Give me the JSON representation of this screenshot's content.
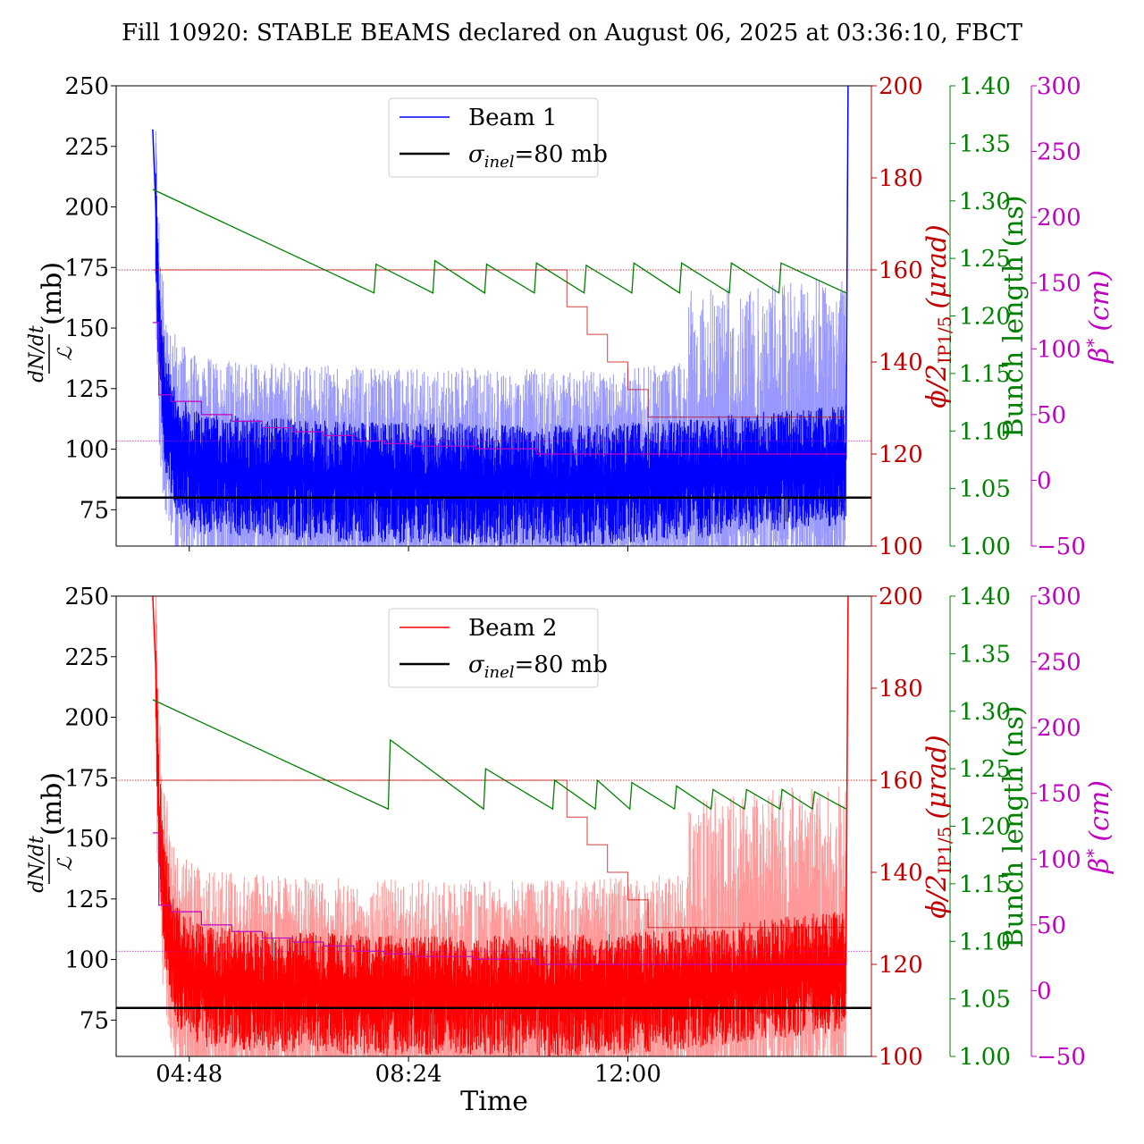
{
  "title": "Fill 10920: STABLE BEAMS declared on August 06, 2025 at 03:36:10, FBCT",
  "colors": {
    "beam1": "#0000ff",
    "beam1_light": "#9999ff",
    "beam2": "#ff0000",
    "beam2_light": "#ff9999",
    "sigma": "#000000",
    "crossing": "#c00000",
    "crossing_right_axis": "#c00000",
    "bunch": "#008000",
    "beta": "#c000c0"
  },
  "xaxis": {
    "label": "Time",
    "range": [
      "03:36",
      "16:00"
    ],
    "ticks": [
      "04:48",
      "08:24",
      "12:00"
    ]
  },
  "left_axis": {
    "label_fraction_numerator": "dN/dt",
    "label_fraction_denominator": "ℒ",
    "label_unit": "(mb)",
    "range": [
      60,
      250
    ],
    "ticks": [
      "75",
      "100",
      "125",
      "150",
      "175",
      "200",
      "225",
      "250"
    ]
  },
  "crossing_axis": {
    "label": "ϕ/2",
    "label_sub": "IP1/5",
    "label_unit": "(μrad)",
    "range": [
      100,
      200
    ],
    "ticks": [
      "100",
      "120",
      "140",
      "160",
      "180",
      "200"
    ]
  },
  "bunch_axis": {
    "label": "Bunch length (ns)",
    "range": [
      1.0,
      1.4
    ],
    "ticks": [
      "1.00",
      "1.05",
      "1.10",
      "1.15",
      "1.20",
      "1.25",
      "1.30",
      "1.35",
      "1.40"
    ]
  },
  "beta_axis": {
    "label": "β",
    "label_sup": "*",
    "label_unit": "(cm)",
    "range": [
      -50,
      300
    ],
    "ticks": [
      "−50",
      "0",
      "50",
      "100",
      "150",
      "200",
      "250",
      "300"
    ]
  },
  "panels": [
    {
      "legend": {
        "beam_label": "Beam 1",
        "sigma_symbol": "σ",
        "sigma_sub": "inel",
        "sigma_value": "=80 mb"
      }
    },
    {
      "legend": {
        "beam_label": "Beam 2",
        "sigma_symbol": "σ",
        "sigma_sub": "inel",
        "sigma_value": "=80 mb"
      }
    }
  ],
  "chart_data": [
    {
      "type": "line",
      "panel": "Beam 1",
      "x_unit": "time (HH:MM)",
      "sigma_inel_mb": 80,
      "series": [
        {
          "name": "Beam 1",
          "axis": "left",
          "x": [
            "04:12",
            "04:15",
            "04:18",
            "04:24",
            "04:36",
            "05:00",
            "06:00",
            "07:00",
            "08:00",
            "09:00",
            "10:00",
            "11:00",
            "12:00",
            "13:00",
            "14:00",
            "15:00",
            "15:35",
            "15:37"
          ],
          "values": [
            232,
            200,
            150,
            120,
            100,
            93,
            91,
            90,
            89,
            89,
            88,
            88,
            89,
            91,
            93,
            95,
            96,
            250
          ]
        },
        {
          "axis": "crossing",
          "x": [
            "04:12",
            "10:00",
            "10:40",
            "11:00",
            "11:20",
            "11:40",
            "12:00",
            "12:20",
            "15:35"
          ],
          "values": [
            160,
            160,
            160,
            152,
            146,
            140,
            134,
            128,
            160
          ]
        },
        {
          "axis": "bunch",
          "x": [
            "04:12",
            "07:50",
            "07:52",
            "08:48",
            "08:50",
            "09:39",
            "09:41",
            "10:28",
            "10:30",
            "11:17",
            "11:19",
            "12:04",
            "12:06",
            "12:51",
            "12:53",
            "13:40",
            "13:42",
            "14:29",
            "14:31",
            "15:35"
          ],
          "values": [
            1.31,
            1.22,
            1.245,
            1.22,
            1.248,
            1.22,
            1.245,
            1.22,
            1.246,
            1.22,
            1.244,
            1.22,
            1.246,
            1.22,
            1.246,
            1.22,
            1.246,
            1.22,
            1.246,
            1.22
          ]
        },
        {
          "axis": "beta",
          "x": [
            "04:12",
            "04:18",
            "04:30",
            "05:00",
            "05:30",
            "06:00",
            "06:30",
            "07:00",
            "07:30",
            "08:00",
            "08:30",
            "09:30",
            "10:30",
            "11:30",
            "12:30",
            "15:35"
          ],
          "values": [
            120,
            65,
            60,
            50,
            45,
            40,
            37,
            34,
            30,
            28,
            26,
            24,
            20,
            20,
            20,
            20
          ]
        }
      ],
      "reference_lines": {
        "crossing": 160,
        "beta": 30
      }
    },
    {
      "type": "line",
      "panel": "Beam 2",
      "x_unit": "time (HH:MM)",
      "sigma_inel_mb": 80,
      "series": [
        {
          "name": "Beam 2",
          "axis": "left",
          "x": [
            "04:12",
            "04:15",
            "04:18",
            "04:24",
            "04:36",
            "05:00",
            "06:00",
            "07:00",
            "08:00",
            "09:00",
            "10:00",
            "11:00",
            "12:00",
            "13:00",
            "14:00",
            "15:00",
            "15:35",
            "15:37"
          ],
          "values": [
            250,
            220,
            160,
            125,
            100,
            92,
            90,
            89,
            88,
            88,
            88,
            88,
            89,
            91,
            94,
            97,
            98,
            250
          ]
        },
        {
          "axis": "crossing",
          "x": [
            "04:12",
            "10:00",
            "10:40",
            "11:00",
            "11:20",
            "11:40",
            "12:00",
            "12:20",
            "15:35"
          ],
          "values": [
            160,
            160,
            160,
            152,
            146,
            140,
            134,
            128,
            160
          ]
        },
        {
          "axis": "bunch",
          "x": [
            "04:12",
            "08:04",
            "08:06",
            "09:38",
            "09:40",
            "10:46",
            "10:48",
            "11:28",
            "11:30",
            "12:02",
            "12:04",
            "12:46",
            "12:48",
            "13:22",
            "13:24",
            "13:55",
            "13:57",
            "14:30",
            "14:32",
            "15:02",
            "15:04",
            "15:35"
          ],
          "values": [
            1.31,
            1.215,
            1.275,
            1.215,
            1.25,
            1.215,
            1.24,
            1.215,
            1.24,
            1.215,
            1.238,
            1.215,
            1.235,
            1.215,
            1.232,
            1.215,
            1.232,
            1.215,
            1.232,
            1.215,
            1.23,
            1.215
          ]
        },
        {
          "axis": "beta",
          "x": [
            "04:12",
            "04:18",
            "04:30",
            "05:00",
            "05:30",
            "06:00",
            "06:30",
            "07:00",
            "07:30",
            "08:00",
            "08:30",
            "09:30",
            "10:30",
            "11:30",
            "12:30",
            "15:35"
          ],
          "values": [
            120,
            65,
            60,
            50,
            45,
            40,
            37,
            34,
            30,
            28,
            26,
            24,
            20,
            20,
            20,
            20
          ]
        }
      ],
      "reference_lines": {
        "crossing": 160,
        "beta": 30
      }
    }
  ]
}
